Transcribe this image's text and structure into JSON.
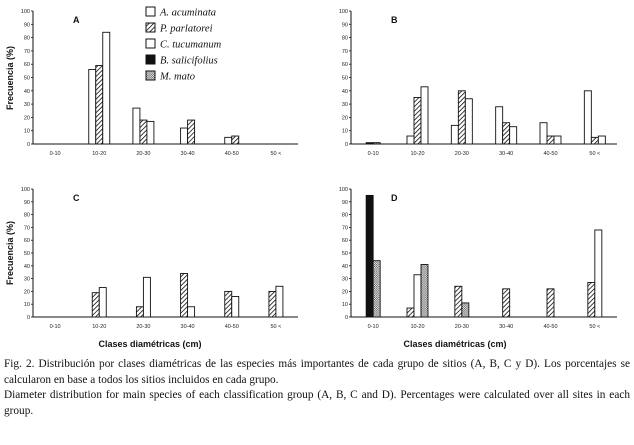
{
  "chart_data": [
    {
      "panel": "A",
      "type": "bar",
      "categories": [
        "0-10",
        "10-20",
        "20-30",
        "30-40",
        "40-50",
        "50 <"
      ],
      "ylim": [
        0,
        100
      ],
      "yticks": [
        0,
        10,
        20,
        30,
        40,
        50,
        60,
        70,
        80,
        90,
        100
      ],
      "series": [
        {
          "name": "A. acuminata",
          "values": [
            0,
            56,
            27,
            12,
            5,
            0
          ]
        },
        {
          "name": "P. parlatorei",
          "values": [
            0,
            59,
            18,
            18,
            6,
            0
          ]
        },
        {
          "name": "C. tucumanum",
          "values": [
            0,
            84,
            17,
            0,
            0,
            0
          ]
        },
        {
          "name": "B. salicifolius",
          "values": [
            0,
            0,
            0,
            0,
            0,
            0
          ]
        },
        {
          "name": "M. mato",
          "values": [
            0,
            0,
            0,
            0,
            0,
            0
          ]
        }
      ]
    },
    {
      "panel": "B",
      "type": "bar",
      "categories": [
        "0-10",
        "10-20",
        "20-30",
        "30-40",
        "40-50",
        "50 <"
      ],
      "ylim": [
        0,
        100
      ],
      "yticks": [
        0,
        10,
        20,
        30,
        40,
        50,
        60,
        70,
        80,
        90,
        100
      ],
      "series": [
        {
          "name": "A. acuminata",
          "values": [
            0,
            6,
            14,
            28,
            16,
            40
          ]
        },
        {
          "name": "P. parlatorei",
          "values": [
            0,
            35,
            40,
            16,
            6,
            5
          ]
        },
        {
          "name": "C. tucumanum",
          "values": [
            0,
            43,
            34,
            13,
            6,
            6
          ]
        },
        {
          "name": "B. salicifolius",
          "values": [
            1,
            0,
            0,
            0,
            0,
            0
          ]
        },
        {
          "name": "M. mato",
          "values": [
            1,
            0,
            0,
            0,
            0,
            0
          ]
        }
      ]
    },
    {
      "panel": "C",
      "type": "bar",
      "categories": [
        "0-10",
        "10-20",
        "20-30",
        "30-40",
        "40-50",
        "50 <"
      ],
      "ylim": [
        0,
        100
      ],
      "yticks": [
        0,
        10,
        20,
        30,
        40,
        50,
        60,
        70,
        80,
        90,
        100
      ],
      "series": [
        {
          "name": "A. acuminata",
          "values": [
            0,
            0,
            0,
            0,
            0,
            0
          ]
        },
        {
          "name": "P. parlatorei",
          "values": [
            0,
            19,
            8,
            34,
            20,
            20
          ]
        },
        {
          "name": "C. tucumanum",
          "values": [
            0,
            23,
            31,
            8,
            16,
            24
          ]
        },
        {
          "name": "B. salicifolius",
          "values": [
            0,
            0,
            0,
            0,
            0,
            0
          ]
        },
        {
          "name": "M. mato",
          "values": [
            0,
            0,
            0,
            0,
            0,
            0
          ]
        }
      ]
    },
    {
      "panel": "D",
      "type": "bar",
      "categories": [
        "0-10",
        "10-20",
        "20-30",
        "30-40",
        "40-50",
        "50 <"
      ],
      "ylim": [
        0,
        100
      ],
      "yticks": [
        0,
        10,
        20,
        30,
        40,
        50,
        60,
        70,
        80,
        90,
        100
      ],
      "series": [
        {
          "name": "A. acuminata",
          "values": [
            0,
            0,
            0,
            0,
            0,
            0
          ]
        },
        {
          "name": "P. parlatorei",
          "values": [
            0,
            7,
            24,
            22,
            22,
            27
          ]
        },
        {
          "name": "C. tucumanum",
          "values": [
            0,
            33,
            0,
            0,
            0,
            68
          ]
        },
        {
          "name": "B. salicifolius",
          "values": [
            95,
            0,
            0,
            0,
            0,
            0
          ]
        },
        {
          "name": "M. mato",
          "values": [
            44,
            41,
            11,
            0,
            0,
            0
          ]
        }
      ]
    }
  ],
  "ylabel": "Frecuencia (%)",
  "xlabel": "Clases diamétricas (cm)",
  "legend": {
    "position": "top-center",
    "entries": [
      {
        "label": "A. acuminata",
        "pattern": "open"
      },
      {
        "label": "P. parlatorei",
        "pattern": "hatched"
      },
      {
        "label": "C. tucumanum",
        "pattern": "open"
      },
      {
        "label": "B. salicifolius",
        "pattern": "solid"
      },
      {
        "label": "M. mato",
        "pattern": "dotted"
      }
    ]
  },
  "caption": {
    "spanish": "Fig. 2. Distribución por clases diamétricas de las especies más importantes de cada grupo de sitios (A, B, C y D). Los porcentajes se calcularon en base a todos los sitios incluidos en cada grupo.",
    "english": "Diameter distribution for main species of each classification group (A, B, C and D). Percentages were calculated over all sites in each group."
  }
}
